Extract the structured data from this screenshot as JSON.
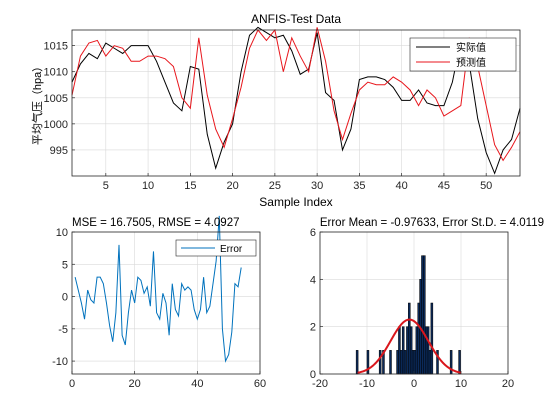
{
  "colors": {
    "actual": "#000000",
    "predicted": "#e8161c",
    "error": "#0072bd",
    "hist_fill": "#0b2a5a",
    "fit": "#d9161c",
    "grid": "#d9d9d9",
    "axis": "#262626"
  },
  "chart_data": [
    {
      "type": "line",
      "title": "ANFIS-Test Data",
      "xlabel": "Sample Index",
      "ylabel": "平均气压（hpa）",
      "xlim": [
        1,
        54
      ],
      "ylim": [
        990,
        1018
      ],
      "xticks": [
        5,
        10,
        15,
        20,
        25,
        30,
        35,
        40,
        45,
        50
      ],
      "yticks": [
        995,
        1000,
        1005,
        1010,
        1015
      ],
      "grid": true,
      "legend_position": "top-right",
      "x": [
        1,
        2,
        3,
        4,
        5,
        6,
        7,
        8,
        9,
        10,
        11,
        12,
        13,
        14,
        15,
        16,
        17,
        18,
        19,
        20,
        21,
        22,
        23,
        24,
        25,
        26,
        27,
        28,
        29,
        30,
        31,
        32,
        33,
        34,
        35,
        36,
        37,
        38,
        39,
        40,
        41,
        42,
        43,
        44,
        45,
        46,
        47,
        48,
        49,
        50,
        51,
        52,
        53,
        54
      ],
      "series": [
        {
          "name": "实际值",
          "color_key": "actual",
          "values": [
            1008,
            1011.5,
            1013.5,
            1012.5,
            1015.5,
            1014.5,
            1013.5,
            1015,
            1015,
            1015,
            1012,
            1008,
            1004,
            1002.5,
            1011,
            1010.5,
            998,
            991.5,
            996.5,
            1000,
            1010,
            1017,
            1018.5,
            1017.5,
            1016.5,
            1017,
            1014,
            1009.5,
            1010.5,
            1017.5,
            1006,
            1004.5,
            995,
            999,
            1008.5,
            1009,
            1009,
            1008.5,
            1007,
            1004.5,
            1004.5,
            1006.5,
            1004,
            1003.5,
            1003.5,
            1008,
            1016,
            1011.5,
            1001,
            994.5,
            990.5,
            995,
            997,
            1003
          ]
        },
        {
          "name": "预测值",
          "color_key": "predicted",
          "values": [
            1005.5,
            1013,
            1015.5,
            1016,
            1013,
            1015,
            1014.5,
            1012,
            1012,
            1013,
            1013,
            1012.5,
            1011,
            1005,
            1003,
            1016.5,
            1005.5,
            999,
            995.5,
            1001,
            1007,
            1014.5,
            1018,
            1016,
            1018,
            1010,
            1016.5,
            1013,
            1010,
            1018.5,
            1012,
            1002.5,
            997,
            1002,
            1006.5,
            1008,
            1007.5,
            1007.5,
            1009,
            1008,
            1006.5,
            1003.5,
            1006.5,
            1005,
            1001.5,
            1002.5,
            1003.5,
            1016.5,
            1011,
            1003.5,
            996,
            993,
            995.5,
            998.5
          ]
        }
      ]
    },
    {
      "type": "line",
      "title": "MSE = 16.7505, RMSE = 4.0927",
      "xlabel": "",
      "ylabel": "",
      "xlim": [
        0,
        60
      ],
      "ylim": [
        -12,
        10
      ],
      "xticks": [
        0,
        20,
        40,
        60
      ],
      "yticks": [
        -10,
        -5,
        0,
        5,
        10
      ],
      "grid": true,
      "legend_position": "top-right",
      "x": [
        1,
        2,
        3,
        4,
        5,
        6,
        7,
        8,
        9,
        10,
        11,
        12,
        13,
        14,
        15,
        16,
        17,
        18,
        19,
        20,
        21,
        22,
        23,
        24,
        25,
        26,
        27,
        28,
        29,
        30,
        31,
        32,
        33,
        34,
        35,
        36,
        37,
        38,
        39,
        40,
        41,
        42,
        43,
        44,
        45,
        46,
        47,
        48,
        49,
        50,
        51,
        52,
        53,
        54
      ],
      "series": [
        {
          "name": "Error",
          "color_key": "error",
          "values": [
            3,
            1,
            -1,
            -3.5,
            1,
            -0.5,
            -1,
            3,
            3,
            2,
            -1,
            -4.5,
            -7,
            -2.5,
            8,
            -6,
            -7.5,
            -2.5,
            1,
            -1,
            3,
            2.5,
            0.5,
            1.5,
            -1.5,
            7,
            -2.5,
            -3.5,
            0.5,
            -1,
            -6,
            2,
            -2,
            -3,
            2,
            1,
            1.5,
            1,
            -2,
            -3.5,
            -2,
            3,
            -2.5,
            -1.5,
            2,
            5.5,
            12.5,
            -5,
            -10,
            -9,
            -5.5,
            2,
            1.5,
            4.5
          ]
        }
      ]
    },
    {
      "type": "bar",
      "subtype": "histogram",
      "title": "Error Mean = -0.97633, Error St.D. = 4.0119",
      "xlabel": "",
      "ylabel": "",
      "xlim": [
        -20,
        20
      ],
      "ylim": [
        0,
        6
      ],
      "xticks": [
        -20,
        -10,
        0,
        10,
        20
      ],
      "yticks": [
        0,
        2,
        4,
        6
      ],
      "grid": true,
      "bin_width": 0.42,
      "bins": [
        {
          "x": -12.1,
          "count": 1
        },
        {
          "x": -9.8,
          "count": 1
        },
        {
          "x": -7.2,
          "count": 1
        },
        {
          "x": -6.5,
          "count": 1
        },
        {
          "x": -5.0,
          "count": 1
        },
        {
          "x": -3.5,
          "count": 1
        },
        {
          "x": -3.1,
          "count": 2
        },
        {
          "x": -2.7,
          "count": 1
        },
        {
          "x": -2.3,
          "count": 2
        },
        {
          "x": -1.9,
          "count": 1
        },
        {
          "x": -1.4,
          "count": 2
        },
        {
          "x": -1.0,
          "count": 3
        },
        {
          "x": -0.6,
          "count": 2
        },
        {
          "x": -0.2,
          "count": 1
        },
        {
          "x": 0.2,
          "count": 1
        },
        {
          "x": 0.6,
          "count": 2
        },
        {
          "x": 1.0,
          "count": 3
        },
        {
          "x": 1.4,
          "count": 4
        },
        {
          "x": 1.8,
          "count": 5
        },
        {
          "x": 2.2,
          "count": 5
        },
        {
          "x": 2.6,
          "count": 2
        },
        {
          "x": 3.0,
          "count": 2
        },
        {
          "x": 3.4,
          "count": 1
        },
        {
          "x": 3.8,
          "count": 3
        },
        {
          "x": 5.0,
          "count": 1
        },
        {
          "x": 7.9,
          "count": 1
        },
        {
          "x": 9.7,
          "count": 1
        }
      ],
      "fit": {
        "type": "normal",
        "mean": -0.97633,
        "std": 4.0119,
        "peak": 2.3,
        "range": [
          -12,
          10
        ],
        "color_key": "fit"
      }
    }
  ]
}
